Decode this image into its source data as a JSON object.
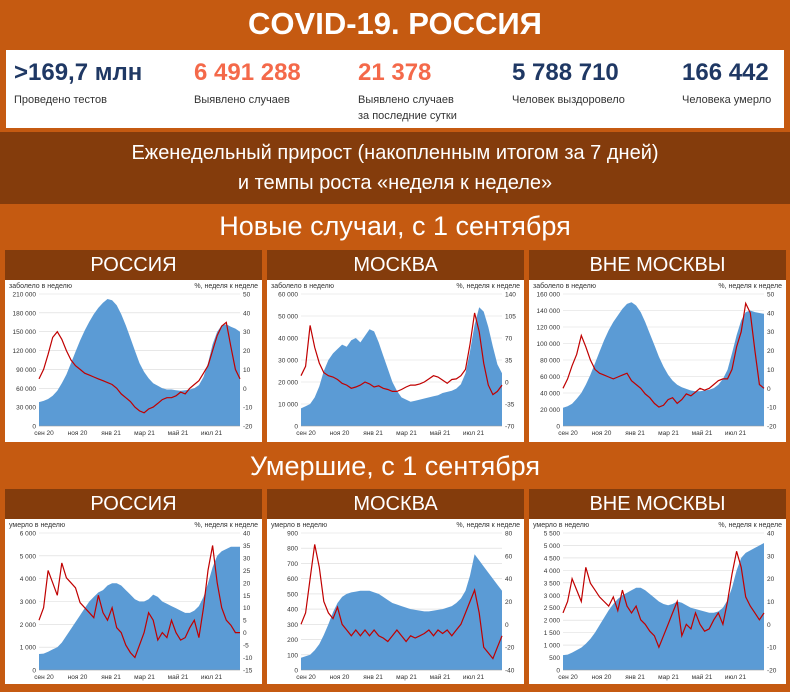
{
  "title": "COVID-19. РОССИЯ",
  "stats": [
    {
      "value": ">169,7 млн",
      "label": "Проведено тестов",
      "label2": "",
      "color": "#1f3864"
    },
    {
      "value": "6 491 288",
      "label": "Выявлено случаев",
      "label2": "",
      "color": "#f4694a"
    },
    {
      "value": "21 378",
      "label": "Выявлено случаев",
      "label2": "за последние сутки",
      "color": "#f4694a"
    },
    {
      "value": "5 788 710",
      "label": "Человек выздоровело",
      "label2": "",
      "color": "#1f3864"
    },
    {
      "value": "166 442",
      "label": "Человека умерло",
      "label2": "",
      "color": "#1f3864"
    }
  ],
  "subtitle_line1": "Еженедельный прирост (накопленным итогом за 7 дней)",
  "subtitle_line2": "и темпы роста «неделя к неделе»",
  "section_cases": "Новые случаи, с 1 сентября",
  "section_deaths": "Умершие, с 1 сентября",
  "colors": {
    "area": "#5b9bd5",
    "line": "#c00000",
    "band_dark": "#843c0c",
    "band_orange": "#c55a11"
  },
  "chart_data": [
    {
      "type": "area",
      "panel_title": "РОССИЯ",
      "left_label": "заболело в неделю",
      "right_label": "%, неделя к неделе",
      "x_ticks": [
        "сен 20",
        "ноя 20",
        "янв 21",
        "мар 21",
        "май 21",
        "июл 21"
      ],
      "ylim": [
        0,
        210000
      ],
      "y_ticks": [
        "0",
        "30 000",
        "60 000",
        "90 000",
        "120 000",
        "150 000",
        "180 000",
        "210 000"
      ],
      "y_tick_values": [
        0,
        30000,
        60000,
        90000,
        120000,
        150000,
        180000,
        210000
      ],
      "y2lim": [
        -20,
        50
      ],
      "y2_ticks": [
        "-20",
        "-10",
        "0",
        "10",
        "20",
        "30",
        "40",
        "50"
      ],
      "y2_tick_values": [
        -20,
        -10,
        0,
        10,
        20,
        30,
        40,
        50
      ],
      "area": [
        38000,
        40000,
        43000,
        48000,
        56000,
        68000,
        82000,
        100000,
        118000,
        136000,
        152000,
        166000,
        178000,
        188000,
        196000,
        202000,
        200000,
        192000,
        178000,
        160000,
        140000,
        120000,
        100000,
        86000,
        76000,
        68000,
        64000,
        60000,
        58000,
        58000,
        57000,
        56000,
        57000,
        58000,
        60000,
        65000,
        78000,
        100000,
        130000,
        150000,
        160000,
        162000,
        158000,
        155000,
        150000
      ],
      "line": [
        5,
        10,
        18,
        27,
        30,
        26,
        20,
        15,
        12,
        10,
        8,
        7,
        6,
        5,
        4,
        3,
        2,
        0,
        -3,
        -5,
        -7,
        -10,
        -12,
        -13,
        -11,
        -10,
        -8,
        -6,
        -5,
        -5,
        -4,
        -2,
        -3,
        0,
        2,
        4,
        8,
        12,
        20,
        28,
        33,
        35,
        22,
        10,
        5
      ]
    },
    {
      "type": "area",
      "panel_title": "МОСКВА",
      "left_label": "заболело в неделю",
      "right_label": "%, неделя к неделе",
      "x_ticks": [
        "сен 20",
        "ноя 20",
        "янв 21",
        "мар 21",
        "май 21",
        "июл 21"
      ],
      "ylim": [
        0,
        60000
      ],
      "y_ticks": [
        "0",
        "10 000",
        "20 000",
        "30 000",
        "40 000",
        "50 000",
        "60 000"
      ],
      "y_tick_values": [
        0,
        10000,
        20000,
        30000,
        40000,
        50000,
        60000
      ],
      "y2lim": [
        -70,
        140
      ],
      "y2_ticks": [
        "-70",
        "-35",
        "0",
        "35",
        "70",
        "105",
        "140"
      ],
      "y2_tick_values": [
        -70,
        -35,
        0,
        35,
        70,
        105,
        140
      ],
      "area": [
        8000,
        9000,
        10000,
        13000,
        18000,
        25000,
        30000,
        33000,
        35000,
        37000,
        36000,
        39000,
        40000,
        38000,
        41000,
        44000,
        43000,
        38000,
        32000,
        26000,
        20000,
        16000,
        13000,
        12000,
        11000,
        11500,
        12000,
        12500,
        13000,
        13500,
        14000,
        15000,
        15500,
        16000,
        17000,
        19000,
        24000,
        34000,
        46000,
        54000,
        52000,
        45000,
        36000,
        28000,
        24000
      ],
      "line": [
        10,
        25,
        90,
        55,
        30,
        15,
        10,
        8,
        4,
        -2,
        -5,
        -10,
        -8,
        -5,
        0,
        -3,
        -8,
        -6,
        -10,
        -12,
        -15,
        -15,
        -12,
        -8,
        -5,
        -5,
        -3,
        0,
        5,
        10,
        8,
        3,
        -2,
        4,
        5,
        10,
        20,
        60,
        110,
        80,
        30,
        -5,
        -20,
        -15,
        -5
      ]
    },
    {
      "type": "area",
      "panel_title": "ВНЕ МОСКВЫ",
      "left_label": "заболело в неделю",
      "right_label": "%, неделя к неделе",
      "x_ticks": [
        "сен 20",
        "ноя 20",
        "янв 21",
        "мар 21",
        "май 21",
        "июл 21"
      ],
      "ylim": [
        0,
        160000
      ],
      "y_ticks": [
        "0",
        "20 000",
        "40 000",
        "60 000",
        "80 000",
        "100 000",
        "120 000",
        "140 000",
        "160 000"
      ],
      "y_tick_values": [
        0,
        20000,
        40000,
        60000,
        80000,
        100000,
        120000,
        140000,
        160000
      ],
      "y2lim": [
        -20,
        50
      ],
      "y2_ticks": [
        "-20",
        "-10",
        "0",
        "10",
        "20",
        "30",
        "40",
        "50"
      ],
      "y2_tick_values": [
        -20,
        -10,
        0,
        10,
        20,
        30,
        40,
        50
      ],
      "area": [
        22000,
        24000,
        27000,
        33000,
        40000,
        50000,
        62000,
        76000,
        90000,
        104000,
        116000,
        126000,
        134000,
        142000,
        148000,
        150000,
        146000,
        138000,
        126000,
        112000,
        98000,
        84000,
        72000,
        62000,
        55000,
        50000,
        47000,
        45000,
        43000,
        42000,
        42000,
        43000,
        44000,
        46000,
        50000,
        57000,
        68000,
        88000,
        110000,
        128000,
        138000,
        140000,
        138000,
        137000,
        136000
      ],
      "line": [
        0,
        5,
        12,
        18,
        28,
        22,
        15,
        10,
        8,
        7,
        6,
        5,
        6,
        7,
        8,
        4,
        2,
        0,
        -3,
        -5,
        -8,
        -10,
        -9,
        -6,
        -5,
        -8,
        -6,
        -3,
        -4,
        -2,
        0,
        -1,
        0,
        2,
        4,
        5,
        5,
        10,
        22,
        30,
        45,
        40,
        20,
        2,
        0
      ]
    },
    {
      "type": "area",
      "panel_title": "РОССИЯ",
      "left_label": "умерло в неделю",
      "right_label": "%, неделя к неделе",
      "x_ticks": [
        "сен 20",
        "ноя 20",
        "янв 21",
        "мар 21",
        "май 21",
        "июл 21"
      ],
      "ylim": [
        0,
        6000
      ],
      "y_ticks": [
        "0",
        "1 000",
        "2 000",
        "3 000",
        "4 000",
        "5 000",
        "6 000"
      ],
      "y_tick_values": [
        0,
        1000,
        2000,
        3000,
        4000,
        5000,
        6000
      ],
      "y2lim": [
        -15,
        40
      ],
      "y2_ticks": [
        "-15",
        "-10",
        "-5",
        "0",
        "5",
        "10",
        "15",
        "20",
        "25",
        "30",
        "35",
        "40"
      ],
      "y2_tick_values": [
        -15,
        -10,
        -5,
        0,
        5,
        10,
        15,
        20,
        25,
        30,
        35,
        40
      ],
      "area": [
        700,
        720,
        800,
        900,
        1000,
        1200,
        1500,
        1800,
        2100,
        2400,
        2700,
        3000,
        3200,
        3400,
        3500,
        3700,
        3800,
        3800,
        3700,
        3500,
        3300,
        3100,
        3000,
        3000,
        3100,
        3300,
        3200,
        3000,
        2900,
        2800,
        2700,
        2600,
        2500,
        2500,
        2600,
        2800,
        3200,
        3800,
        4500,
        5000,
        5200,
        5300,
        5400,
        5400,
        5400
      ],
      "line": [
        5,
        10,
        25,
        20,
        15,
        28,
        22,
        20,
        18,
        12,
        10,
        8,
        6,
        15,
        8,
        5,
        10,
        2,
        0,
        -5,
        -8,
        -10,
        -5,
        0,
        8,
        5,
        -3,
        0,
        -2,
        5,
        0,
        -3,
        -2,
        2,
        5,
        -2,
        10,
        25,
        35,
        20,
        10,
        5,
        3,
        0,
        0
      ]
    },
    {
      "type": "area",
      "panel_title": "МОСКВА",
      "left_label": "умерло в неделю",
      "right_label": "%, неделя к неделе",
      "x_ticks": [
        "сен 20",
        "ноя 20",
        "янв 21",
        "мар 21",
        "май 21",
        "июл 21"
      ],
      "ylim": [
        0,
        900
      ],
      "y_ticks": [
        "0",
        "100",
        "200",
        "300",
        "400",
        "500",
        "600",
        "700",
        "800",
        "900"
      ],
      "y_tick_values": [
        0,
        100,
        200,
        300,
        400,
        500,
        600,
        700,
        800,
        900
      ],
      "y2lim": [
        -40,
        80
      ],
      "y2_ticks": [
        "-40",
        "-20",
        "0",
        "20",
        "40",
        "60",
        "80"
      ],
      "y2_tick_values": [
        -40,
        -20,
        0,
        20,
        40,
        60,
        80
      ],
      "area": [
        80,
        90,
        100,
        130,
        170,
        230,
        300,
        380,
        440,
        480,
        500,
        510,
        515,
        520,
        520,
        520,
        510,
        500,
        480,
        460,
        440,
        430,
        420,
        410,
        400,
        395,
        390,
        385,
        385,
        390,
        395,
        400,
        410,
        420,
        440,
        470,
        520,
        620,
        760,
        720,
        680,
        640,
        600,
        560,
        520
      ],
      "line": [
        0,
        10,
        40,
        70,
        50,
        20,
        10,
        5,
        15,
        0,
        -5,
        -10,
        -5,
        -10,
        -5,
        -10,
        -5,
        -10,
        -12,
        -15,
        -10,
        -5,
        -10,
        -15,
        -10,
        -12,
        -10,
        -8,
        -5,
        -10,
        -5,
        -8,
        -5,
        -10,
        -5,
        0,
        10,
        20,
        30,
        10,
        -20,
        -25,
        -30,
        -20,
        -10
      ]
    },
    {
      "type": "area",
      "panel_title": "ВНЕ МОСКВЫ",
      "left_label": "умерло в неделю",
      "right_label": "%, неделя к неделе",
      "x_ticks": [
        "сен 20",
        "ноя 20",
        "янв 21",
        "мар 21",
        "май 21",
        "июл 21"
      ],
      "ylim": [
        0,
        5500
      ],
      "y_ticks": [
        "0",
        "500",
        "1 000",
        "1 500",
        "2 000",
        "2 500",
        "3 000",
        "3 500",
        "4 000",
        "4 500",
        "5 000",
        "5 500"
      ],
      "y_tick_values": [
        0,
        500,
        1000,
        1500,
        2000,
        2500,
        3000,
        3500,
        4000,
        4500,
        5000,
        5500
      ],
      "y2lim": [
        -20,
        40
      ],
      "y2_ticks": [
        "-20",
        "-10",
        "0",
        "10",
        "20",
        "30",
        "40"
      ],
      "y2_tick_values": [
        -20,
        -10,
        0,
        10,
        20,
        30,
        40
      ],
      "area": [
        600,
        620,
        700,
        800,
        900,
        1050,
        1250,
        1500,
        1800,
        2100,
        2400,
        2650,
        2850,
        3000,
        3100,
        3200,
        3300,
        3300,
        3200,
        3050,
        2900,
        2750,
        2650,
        2600,
        2650,
        2750,
        2700,
        2600,
        2500,
        2450,
        2400,
        2350,
        2300,
        2300,
        2350,
        2500,
        2800,
        3300,
        4000,
        4500,
        4700,
        4800,
        4900,
        5000,
        5100
      ],
      "line": [
        5,
        10,
        20,
        15,
        10,
        25,
        18,
        15,
        12,
        10,
        8,
        12,
        6,
        15,
        8,
        5,
        8,
        2,
        0,
        -3,
        -5,
        -10,
        -5,
        0,
        5,
        10,
        -5,
        0,
        -2,
        5,
        0,
        -3,
        -2,
        2,
        5,
        0,
        10,
        22,
        32,
        25,
        12,
        8,
        5,
        2,
        5
      ]
    }
  ]
}
